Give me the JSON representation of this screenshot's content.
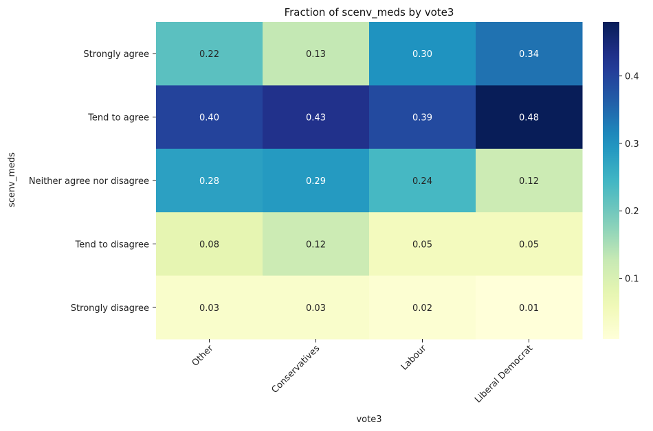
{
  "chart_data": {
    "type": "heatmap",
    "title": "Fraction of scenv_meds by vote3",
    "xlabel": "vote3",
    "ylabel": "scenv_meds",
    "x_categories": [
      "Other",
      "Conservatives",
      "Labour",
      "Liberal Democrat"
    ],
    "y_categories": [
      "Strongly agree",
      "Tend to agree",
      "Neither agree nor disagree",
      "Tend to disagree",
      "Strongly disagree"
    ],
    "values": [
      [
        0.22,
        0.13,
        0.3,
        0.34
      ],
      [
        0.4,
        0.43,
        0.39,
        0.48
      ],
      [
        0.28,
        0.29,
        0.24,
        0.12
      ],
      [
        0.08,
        0.12,
        0.05,
        0.05
      ],
      [
        0.03,
        0.03,
        0.02,
        0.01
      ]
    ],
    "labels": [
      [
        "0.22",
        "0.13",
        "0.30",
        "0.34"
      ],
      [
        "0.40",
        "0.43",
        "0.39",
        "0.48"
      ],
      [
        "0.28",
        "0.29",
        "0.24",
        "0.12"
      ],
      [
        "0.08",
        "0.12",
        "0.05",
        "0.05"
      ],
      [
        "0.03",
        "0.03",
        "0.02",
        "0.01"
      ]
    ],
    "colormap": "YlGnBu",
    "colorbar": {
      "vmin": 0.01,
      "vmax": 0.48,
      "ticks": [
        0.1,
        0.2,
        0.3,
        0.4
      ],
      "tick_labels": [
        "0.1",
        "0.2",
        "0.3",
        "0.4"
      ]
    },
    "x_tick_rotation": 45
  }
}
